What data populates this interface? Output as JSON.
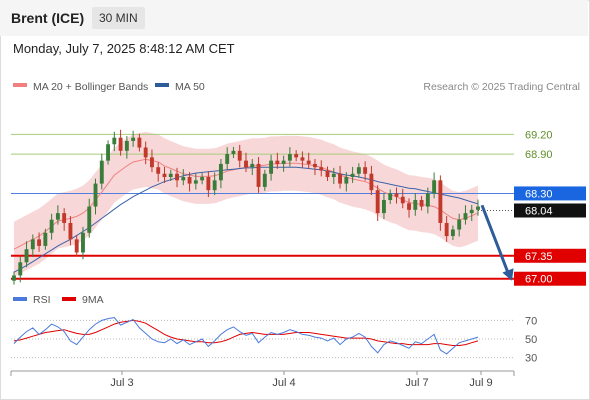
{
  "header": {
    "instrument": "Brent (ICE)",
    "timeframe": "30 MIN",
    "datetime": "Monday, July 7, 2025 8:48:12 AM CET"
  },
  "legend": {
    "items": [
      {
        "label": "MA 20 + Bollinger Bands",
        "color": "#f08080"
      },
      {
        "label": "MA 50",
        "color": "#2e5c9a"
      }
    ],
    "credit": "Research © 2025 Trading Central"
  },
  "colors": {
    "up": "#3a7d3a",
    "down": "#c0392b",
    "band": "#f6c9cc",
    "ma20": "#f08080",
    "ma50": "#3b63a8",
    "resistance": "#a8cc7a",
    "pivot": "#4f7fe0",
    "support": "#e00000",
    "rsi": "#4a7bdc",
    "rsi_ma": "#e00000",
    "arrow": "#2e5c9a"
  },
  "chart_data": [
    {
      "type": "candlestick",
      "y_range": [
        66.95,
        69.45
      ],
      "x_tick_labels": [
        "Jul 3",
        "Jul 4",
        "Jul 7",
        "Jul 9"
      ],
      "levels": [
        {
          "value": 69.2,
          "label": "69.20",
          "kind": "resistance"
        },
        {
          "value": 68.9,
          "label": "68.90",
          "kind": "resistance"
        },
        {
          "value": 68.3,
          "label": "68.30",
          "kind": "pivot"
        },
        {
          "value": 67.35,
          "label": "67.35",
          "kind": "support"
        },
        {
          "value": 67.0,
          "label": "67.00",
          "kind": "support"
        }
      ],
      "last_price": {
        "value": 68.04,
        "label": "68.04"
      },
      "forecast_arrow": {
        "from": 68.12,
        "to": 66.97
      },
      "series_close": [
        67.05,
        67.25,
        67.45,
        67.6,
        67.5,
        67.7,
        67.9,
        68.0,
        67.85,
        67.6,
        67.4,
        67.7,
        68.1,
        68.45,
        68.8,
        69.05,
        69.15,
        68.95,
        69.1,
        69.15,
        69.0,
        68.85,
        68.7,
        68.6,
        68.55,
        68.6,
        68.5,
        68.55,
        68.45,
        68.5,
        68.55,
        68.35,
        68.5,
        68.75,
        68.9,
        68.95,
        68.8,
        68.7,
        68.75,
        68.4,
        68.6,
        68.8,
        68.75,
        68.8,
        68.9,
        68.85,
        68.8,
        68.75,
        68.7,
        68.65,
        68.55,
        68.6,
        68.45,
        68.55,
        68.6,
        68.7,
        68.6,
        68.35,
        68.0,
        68.2,
        68.3,
        68.25,
        68.15,
        68.05,
        68.2,
        68.1,
        68.3,
        68.5,
        67.85,
        67.65,
        67.75,
        67.9,
        68.0,
        68.05,
        68.1
      ],
      "ma20": [
        67.45,
        67.5,
        67.55,
        67.6,
        67.65,
        67.72,
        67.8,
        67.88,
        67.9,
        67.92,
        67.95,
        68.0,
        68.08,
        68.2,
        68.32,
        68.45,
        68.58,
        68.65,
        68.72,
        68.78,
        68.8,
        68.82,
        68.8,
        68.78,
        68.72,
        68.68,
        68.64,
        68.6,
        68.58,
        68.56,
        68.56,
        68.56,
        68.57,
        68.6,
        68.64,
        68.66,
        68.68,
        68.7,
        68.72,
        68.72,
        68.73,
        68.75,
        68.75,
        68.76,
        68.76,
        68.76,
        68.75,
        68.74,
        68.72,
        68.7,
        68.66,
        68.63,
        68.58,
        68.55,
        68.52,
        68.5,
        68.48,
        68.44,
        68.38,
        68.32,
        68.28,
        68.25,
        68.2,
        68.16,
        68.15,
        68.13,
        68.12,
        68.1,
        68.05,
        67.98,
        67.92,
        67.9,
        67.92,
        67.96,
        68.0
      ],
      "ma50": [
        67.1,
        67.15,
        67.2,
        67.26,
        67.32,
        67.38,
        67.44,
        67.5,
        67.55,
        67.6,
        67.66,
        67.72,
        67.78,
        67.85,
        67.92,
        67.99,
        68.06,
        68.13,
        68.19,
        68.25,
        68.3,
        68.35,
        68.4,
        68.44,
        68.48,
        68.51,
        68.54,
        68.57,
        68.59,
        68.61,
        68.62,
        68.63,
        68.64,
        68.65,
        68.66,
        68.67,
        68.68,
        68.69,
        68.69,
        68.7,
        68.7,
        68.7,
        68.7,
        68.7,
        68.7,
        68.7,
        68.69,
        68.68,
        68.67,
        68.66,
        68.64,
        68.62,
        68.6,
        68.58,
        68.57,
        68.55,
        68.53,
        68.51,
        68.48,
        68.46,
        68.44,
        68.42,
        68.4,
        68.38,
        68.37,
        68.35,
        68.33,
        68.31,
        68.29,
        68.27,
        68.25,
        68.23,
        68.2,
        68.17,
        68.14
      ]
    },
    {
      "type": "line",
      "legend": [
        {
          "label": "RSI"
        },
        {
          "label": "9MA"
        }
      ],
      "y_range": [
        22,
        78
      ],
      "y_ticks": [
        70,
        50,
        30
      ],
      "series": [
        {
          "name": "RSI",
          "values": [
            45,
            52,
            58,
            62,
            55,
            60,
            66,
            63,
            58,
            48,
            44,
            52,
            60,
            66,
            70,
            72,
            73,
            65,
            68,
            71,
            62,
            56,
            50,
            47,
            46,
            50,
            45,
            49,
            44,
            47,
            50,
            42,
            48,
            55,
            60,
            63,
            58,
            54,
            56,
            46,
            52,
            57,
            55,
            57,
            60,
            58,
            55,
            54,
            52,
            51,
            48,
            51,
            44,
            50,
            52,
            56,
            52,
            42,
            35,
            44,
            48,
            46,
            43,
            40,
            47,
            45,
            50,
            55,
            38,
            34,
            40,
            46,
            48,
            50,
            52
          ]
        },
        {
          "name": "9MA",
          "values": [
            48,
            49,
            51,
            53,
            55,
            57,
            58,
            59,
            60,
            58,
            56,
            55,
            55,
            57,
            60,
            63,
            66,
            68,
            69,
            70,
            69,
            67,
            63,
            59,
            55,
            52,
            50,
            49,
            48,
            47,
            47,
            46,
            46,
            47,
            49,
            52,
            55,
            56,
            57,
            56,
            55,
            55,
            55,
            55,
            56,
            57,
            57,
            57,
            56,
            55,
            54,
            53,
            52,
            51,
            51,
            51,
            51,
            50,
            48,
            47,
            46,
            45,
            45,
            44,
            44,
            44,
            44,
            45,
            45,
            44,
            43,
            43,
            44,
            46,
            48
          ]
        }
      ]
    }
  ]
}
